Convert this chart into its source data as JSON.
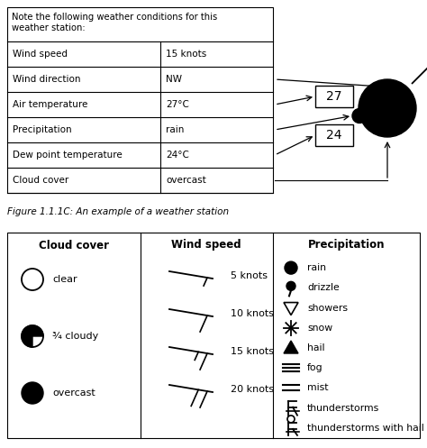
{
  "bg_color": "#ffffff",
  "table_rows": [
    [
      "Note the following weather conditions for this\nweather station:",
      ""
    ],
    [
      "Wind speed",
      "15 knots"
    ],
    [
      "Wind direction",
      "NW"
    ],
    [
      "Air temperature",
      "27°C"
    ],
    [
      "Precipitation",
      "rain"
    ],
    [
      "Dew point temperature",
      "24°C"
    ],
    [
      "Cloud cover",
      "overcast"
    ]
  ],
  "figure_caption": "Figure 1.1.1C: An example of a weather station",
  "cloud_cover_title": "Cloud cover",
  "wind_speed_title": "Wind speed",
  "precipitation_title": "Precipitation",
  "wind_speed_items": [
    "5 knots",
    "10 knots",
    "15 knots",
    "20 knots"
  ],
  "precipitation_items": [
    "rain",
    "drizzle",
    "showers",
    "snow",
    "hail",
    "fog",
    "mist",
    "thunderstorms",
    "thunderstorms with hail"
  ]
}
